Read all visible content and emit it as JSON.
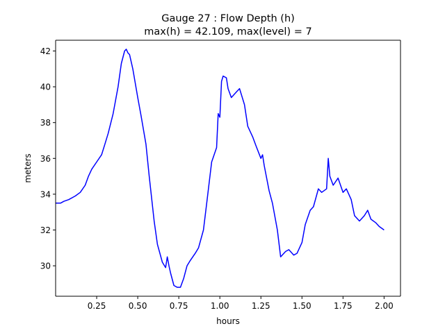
{
  "chart_data": {
    "type": "line",
    "title": "Gauge 27 : Flow Depth (h)",
    "subtitle": "max(h) =  42.109,    max(level) = 7",
    "xlabel": "hours",
    "ylabel": "meters",
    "xlim": [
      0.0,
      2.1
    ],
    "ylim": [
      28.3,
      42.6
    ],
    "xticks": [
      0.25,
      0.5,
      0.75,
      1.0,
      1.25,
      1.5,
      1.75,
      2.0
    ],
    "xtick_labels": [
      "0.25",
      "0.50",
      "0.75",
      "1.00",
      "1.25",
      "1.50",
      "1.75",
      "2.00"
    ],
    "yticks": [
      30,
      32,
      34,
      36,
      38,
      40,
      42
    ],
    "ytick_labels": [
      "30",
      "32",
      "34",
      "36",
      "38",
      "40",
      "42"
    ],
    "grid": false,
    "series": [
      {
        "color": "#0000ff",
        "x": [
          0.0,
          0.03,
          0.05,
          0.08,
          0.12,
          0.15,
          0.18,
          0.2,
          0.22,
          0.25,
          0.28,
          0.3,
          0.32,
          0.35,
          0.38,
          0.4,
          0.42,
          0.43,
          0.44,
          0.45,
          0.47,
          0.5,
          0.52,
          0.55,
          0.57,
          0.6,
          0.62,
          0.65,
          0.67,
          0.68,
          0.69,
          0.7,
          0.72,
          0.74,
          0.76,
          0.78,
          0.8,
          0.82,
          0.85,
          0.87,
          0.9,
          0.92,
          0.95,
          0.98,
          0.99,
          1.0,
          1.01,
          1.02,
          1.04,
          1.05,
          1.07,
          1.1,
          1.12,
          1.15,
          1.17,
          1.2,
          1.22,
          1.25,
          1.26,
          1.27,
          1.3,
          1.32,
          1.35,
          1.37,
          1.4,
          1.42,
          1.45,
          1.47,
          1.5,
          1.52,
          1.55,
          1.57,
          1.6,
          1.62,
          1.65,
          1.66,
          1.67,
          1.69,
          1.72,
          1.75,
          1.77,
          1.8,
          1.82,
          1.85,
          1.88,
          1.9,
          1.92,
          1.95,
          1.97,
          2.0
        ],
        "values": [
          33.5,
          33.5,
          33.6,
          33.7,
          33.9,
          34.1,
          34.5,
          35.0,
          35.4,
          35.8,
          36.2,
          36.8,
          37.4,
          38.5,
          40.0,
          41.3,
          42.0,
          42.1,
          41.9,
          41.8,
          41.0,
          39.4,
          38.4,
          36.8,
          35.0,
          32.5,
          31.2,
          30.2,
          29.9,
          30.5,
          30.0,
          29.6,
          28.9,
          28.8,
          28.8,
          29.3,
          30.0,
          30.3,
          30.7,
          31.0,
          32.0,
          33.5,
          35.8,
          36.6,
          38.5,
          38.3,
          40.3,
          40.6,
          40.5,
          39.9,
          39.4,
          39.7,
          39.9,
          39.0,
          37.8,
          37.2,
          36.7,
          36.0,
          36.2,
          35.6,
          34.2,
          33.5,
          32.0,
          30.5,
          30.8,
          30.9,
          30.6,
          30.7,
          31.3,
          32.3,
          33.1,
          33.3,
          34.3,
          34.1,
          34.3,
          36.0,
          35.0,
          34.5,
          34.9,
          34.1,
          34.3,
          33.7,
          32.8,
          32.5,
          32.8,
          33.1,
          32.6,
          32.4,
          32.2,
          32.0
        ]
      }
    ]
  }
}
